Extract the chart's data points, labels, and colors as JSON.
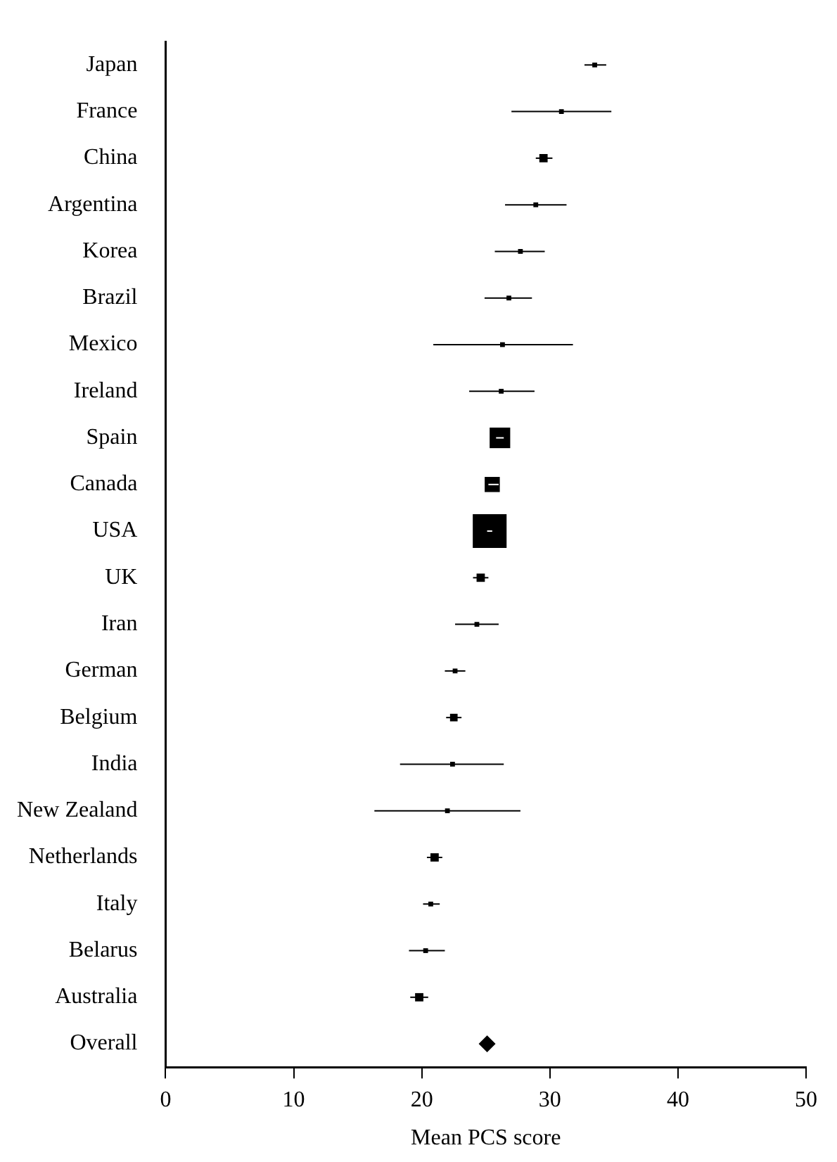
{
  "chart_data": {
    "type": "bubble",
    "orientation": "horizontal",
    "xlabel": "Mean PCS score",
    "categories": [
      "Japan",
      "France",
      "China",
      "Argentina",
      "Korea",
      "Brazil",
      "Mexico",
      "Ireland",
      "Spain",
      "Canada",
      "USA",
      "UK",
      "Iran",
      "German",
      "Belgium",
      "India",
      "New Zealand",
      "Netherlands",
      "Italy",
      "Belarus",
      "Australia",
      "Overall"
    ],
    "series": [
      {
        "marker": "square",
        "color": "#000000",
        "values": [
          33.5,
          30.9,
          29.5,
          28.9,
          27.7,
          26.8,
          26.3,
          26.2,
          26.1,
          25.5,
          25.3,
          24.6,
          24.3,
          22.6,
          22.5,
          22.4,
          22.0,
          21.0,
          20.7,
          20.3,
          19.8,
          null
        ],
        "errors": [
          [
            32.7,
            34.4
          ],
          [
            27.0,
            34.8
          ],
          [
            28.9,
            30.2
          ],
          [
            26.5,
            31.3
          ],
          [
            25.7,
            29.6
          ],
          [
            24.9,
            28.6
          ],
          [
            20.9,
            31.8
          ],
          [
            23.7,
            28.8
          ],
          [
            25.8,
            26.4
          ],
          [
            25.2,
            26.0
          ],
          [
            25.1,
            25.5
          ],
          [
            24.0,
            25.2
          ],
          [
            22.6,
            26.0
          ],
          [
            21.8,
            23.4
          ],
          [
            21.9,
            23.1
          ],
          [
            18.3,
            26.4
          ],
          [
            16.3,
            27.7
          ],
          [
            20.4,
            21.6
          ],
          [
            20.1,
            21.4
          ],
          [
            19.0,
            21.8
          ],
          [
            19.1,
            20.5
          ],
          null
        ],
        "sizes": [
          0.02,
          0.02,
          0.06,
          0.02,
          0.02,
          0.02,
          0.02,
          0.02,
          0.37,
          0.2,
          1,
          0.06,
          0.02,
          0.02,
          0.05,
          0.02,
          0.02,
          0.06,
          0.02,
          0.02,
          0.06,
          null
        ]
      },
      {
        "marker": "diamond",
        "color": "#000000",
        "values": [
          null,
          null,
          null,
          null,
          null,
          null,
          null,
          null,
          null,
          null,
          null,
          null,
          null,
          null,
          null,
          null,
          null,
          null,
          null,
          null,
          null,
          25.1
        ],
        "errors": [
          null,
          null,
          null,
          null,
          null,
          null,
          null,
          null,
          null,
          null,
          null,
          null,
          null,
          null,
          null,
          null,
          null,
          null,
          null,
          null,
          null,
          [
            24.9,
            25.3
          ]
        ]
      }
    ],
    "xlim": [
      0,
      50
    ],
    "xticks": [
      0,
      10,
      20,
      30,
      40,
      50
    ],
    "grid": false,
    "legend": false
  }
}
